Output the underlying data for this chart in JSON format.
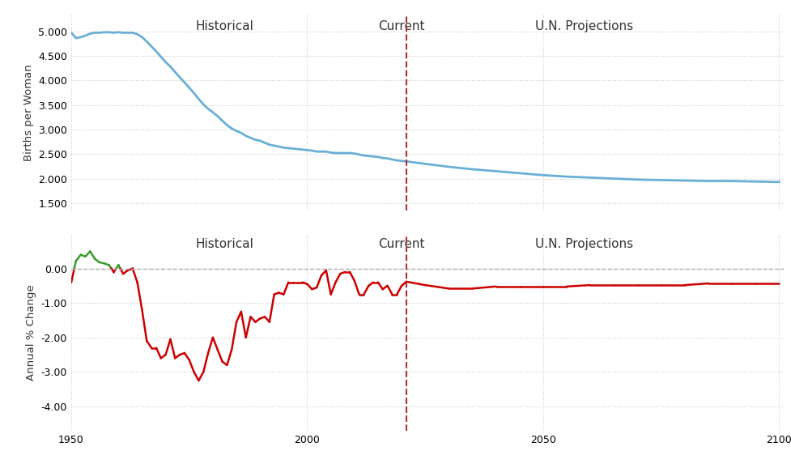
{
  "bg_color": "#ffffff",
  "current_year": 2021,
  "section_labels": {
    "historical": "Historical",
    "current": "Current",
    "projections": "U.N. Projections"
  },
  "top_chart": {
    "ylabel": "Births per Woman",
    "yticks": [
      1.5,
      2.0,
      2.5,
      3.0,
      3.5,
      4.0,
      4.5,
      5.0
    ],
    "ylim": [
      1.35,
      5.35
    ],
    "line_color": "#6aafd6",
    "line_width": 2.0
  },
  "bottom_chart": {
    "ylabel": "Annual % Change",
    "yticks": [
      -4.0,
      -3.0,
      -2.0,
      -1.0,
      0.0
    ],
    "ylim": [
      -4.7,
      1.0
    ],
    "line_color_positive": "#3a9c2a",
    "line_color_negative": "#cc0000",
    "zero_line_color": "#b0b0b0",
    "zero_line_style": "--"
  },
  "xlim": [
    1950,
    2101
  ],
  "xticks": [
    1950,
    2000,
    2050,
    2100
  ],
  "grid_color": "#cccccc",
  "grid_style": ":",
  "vline_color": "#b03030",
  "vline_style": "--",
  "fertility_data": {
    "years": [
      1950,
      1951,
      1952,
      1953,
      1954,
      1955,
      1956,
      1957,
      1958,
      1959,
      1960,
      1961,
      1962,
      1963,
      1964,
      1965,
      1966,
      1967,
      1968,
      1969,
      1970,
      1971,
      1972,
      1973,
      1974,
      1975,
      1976,
      1977,
      1978,
      1979,
      1980,
      1981,
      1982,
      1983,
      1984,
      1985,
      1986,
      1987,
      1988,
      1989,
      1990,
      1991,
      1992,
      1993,
      1994,
      1995,
      1996,
      1997,
      1998,
      1999,
      2000,
      2001,
      2002,
      2003,
      2004,
      2005,
      2006,
      2007,
      2008,
      2009,
      2010,
      2011,
      2012,
      2013,
      2014,
      2015,
      2016,
      2017,
      2018,
      2019,
      2020,
      2021,
      2025,
      2030,
      2035,
      2040,
      2045,
      2050,
      2055,
      2060,
      2065,
      2070,
      2075,
      2080,
      2085,
      2090,
      2095,
      2100
    ],
    "values": [
      4.97,
      4.86,
      4.88,
      4.91,
      4.95,
      4.97,
      4.97,
      4.98,
      4.98,
      4.97,
      4.98,
      4.97,
      4.97,
      4.97,
      4.94,
      4.88,
      4.79,
      4.69,
      4.59,
      4.48,
      4.37,
      4.28,
      4.17,
      4.06,
      3.96,
      3.85,
      3.74,
      3.62,
      3.51,
      3.42,
      3.35,
      3.27,
      3.18,
      3.09,
      3.02,
      2.97,
      2.93,
      2.87,
      2.83,
      2.79,
      2.77,
      2.73,
      2.69,
      2.67,
      2.65,
      2.63,
      2.62,
      2.61,
      2.6,
      2.59,
      2.58,
      2.57,
      2.55,
      2.55,
      2.55,
      2.53,
      2.52,
      2.52,
      2.52,
      2.52,
      2.51,
      2.49,
      2.47,
      2.46,
      2.45,
      2.44,
      2.42,
      2.41,
      2.39,
      2.37,
      2.36,
      2.35,
      2.3,
      2.24,
      2.19,
      2.15,
      2.11,
      2.07,
      2.04,
      2.02,
      2.0,
      1.98,
      1.97,
      1.96,
      1.95,
      1.95,
      1.94,
      1.93
    ]
  },
  "pct_change_data": {
    "years": [
      1950,
      1951,
      1952,
      1953,
      1954,
      1955,
      1956,
      1957,
      1958,
      1959,
      1960,
      1961,
      1962,
      1963,
      1964,
      1965,
      1966,
      1967,
      1968,
      1969,
      1970,
      1971,
      1972,
      1973,
      1974,
      1975,
      1976,
      1977,
      1978,
      1979,
      1980,
      1981,
      1982,
      1983,
      1984,
      1985,
      1986,
      1987,
      1988,
      1989,
      1990,
      1991,
      1992,
      1993,
      1994,
      1995,
      1996,
      1997,
      1998,
      1999,
      2000,
      2001,
      2002,
      2003,
      2004,
      2005,
      2006,
      2007,
      2008,
      2009,
      2010,
      2011,
      2012,
      2013,
      2014,
      2015,
      2016,
      2017,
      2018,
      2019,
      2020,
      2021,
      2025,
      2030,
      2035,
      2040,
      2045,
      2050,
      2055,
      2060,
      2065,
      2070,
      2075,
      2080,
      2085,
      2090,
      2095,
      2100
    ],
    "values": [
      -0.4,
      0.22,
      0.4,
      0.35,
      0.5,
      0.28,
      0.18,
      0.15,
      0.1,
      -0.1,
      0.1,
      -0.15,
      -0.05,
      0.0,
      -0.4,
      -1.2,
      -2.1,
      -2.3,
      -2.3,
      -2.6,
      -2.5,
      -2.05,
      -2.6,
      -2.5,
      -2.45,
      -2.65,
      -3.0,
      -3.25,
      -3.0,
      -2.45,
      -2.0,
      -2.35,
      -2.7,
      -2.8,
      -2.35,
      -1.55,
      -1.25,
      -2.0,
      -1.4,
      -1.55,
      -1.45,
      -1.4,
      -1.55,
      -0.75,
      -0.7,
      -0.75,
      -0.4,
      -0.4,
      -0.4,
      -0.4,
      -0.45,
      -0.6,
      -0.55,
      -0.2,
      -0.05,
      -0.75,
      -0.4,
      -0.15,
      -0.1,
      -0.1,
      -0.35,
      -0.75,
      -0.75,
      -0.5,
      -0.4,
      -0.4,
      -0.6,
      -0.5,
      -0.75,
      -0.75,
      -0.5,
      -0.38,
      -0.48,
      -0.58,
      -0.58,
      -0.52,
      -0.52,
      -0.52,
      -0.52,
      -0.48,
      -0.48,
      -0.48,
      -0.48,
      -0.48,
      -0.43,
      -0.43,
      -0.43,
      -0.43
    ]
  }
}
